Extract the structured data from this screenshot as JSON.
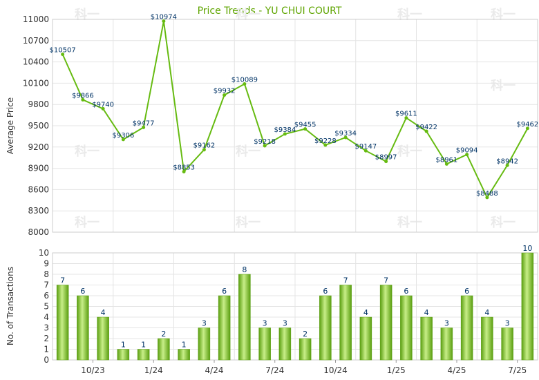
{
  "chart_data": [
    {
      "type": "line",
      "title": "Price Trends - YU CHUI COURT",
      "ylabel": "Average Price",
      "ylim": [
        8000,
        11000
      ],
      "yticks": [
        8000,
        8300,
        8600,
        8900,
        9200,
        9500,
        9800,
        10100,
        10400,
        10700,
        11000
      ],
      "grid": true,
      "series": [
        {
          "values": [
            10507,
            9866,
            9740,
            9306,
            9477,
            10974,
            8853,
            9162,
            9932,
            10089,
            9218,
            9384,
            9455,
            9228,
            9334,
            9147,
            8997,
            9611,
            9422,
            8961,
            9094,
            8488,
            8942,
            9462
          ],
          "labels": [
            "$10507",
            "$9866",
            "$9740",
            "$9306",
            "$9477",
            "$10974",
            "$8853",
            "$9162",
            "$9932",
            "$10089",
            "$9218",
            "$9384",
            "$9455",
            "$9228",
            "$9334",
            "$9147",
            "$8997",
            "$9611",
            "$9422",
            "$8961",
            "$9094",
            "$8488",
            "$8942",
            "$9462"
          ],
          "color": "#66bb11"
        }
      ]
    },
    {
      "type": "bar",
      "ylabel": "No. of Transactions",
      "ylim": [
        0,
        10
      ],
      "yticks": [
        "0",
        "1",
        "2",
        "3",
        "4",
        "5",
        "6",
        "7",
        "8",
        "9",
        "10"
      ],
      "grid": true,
      "x_tick_labels": [
        "10/23",
        "1/24",
        "4/24",
        "7/24",
        "10/24",
        "1/25",
        "4/25",
        "7/25"
      ],
      "series": [
        {
          "values": [
            7,
            6,
            4,
            1,
            1,
            2,
            1,
            3,
            6,
            8,
            3,
            3,
            2,
            6,
            7,
            4,
            7,
            6,
            4,
            3,
            6,
            4,
            3,
            10
          ],
          "labels": [
            "7",
            "6",
            "4",
            "1",
            "1",
            "2",
            "1",
            "3",
            "6",
            "8",
            "3",
            "3",
            "2",
            "6",
            "7",
            "4",
            "7",
            "6",
            "4",
            "3",
            "6",
            "4",
            "3",
            "10"
          ],
          "color": "#77c022"
        }
      ]
    }
  ],
  "colors": {
    "line": "#66bb11",
    "bar_dark": "#5a9e10",
    "bar_light": "#c8ee88",
    "grid": "#e4e4e4",
    "title": "#5fa500",
    "label": "#003366"
  },
  "watermark_text": "科一"
}
